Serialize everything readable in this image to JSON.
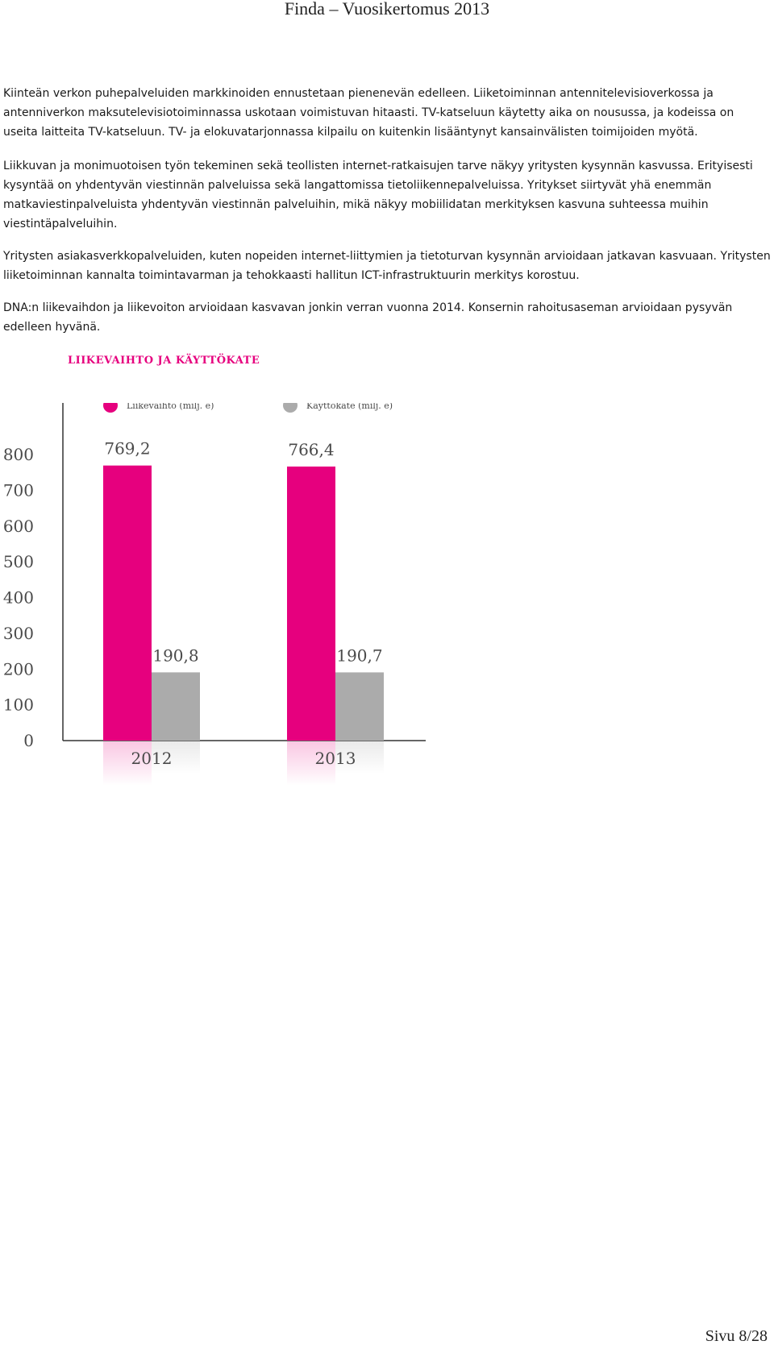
{
  "header": {
    "title": "Finda – Vuosikertomus 2013"
  },
  "paragraphs": [
    "Kiinteän verkon puhepalveluiden markkinoiden ennustetaan pienenevän edelleen. Liiketoiminnan antennitelevisioverkossa ja antenniverkon maksutelevisiotoiminnassa uskotaan voimistuvan hitaasti. TV-katseluun käytetty aika on nousussa, ja kodeissa on useita laitteita TV-katseluun. TV- ja elokuvatarjonnassa kilpailu on kuitenkin lisääntynyt kansainvälisten toimijoiden myötä.",
    "Liikkuvan ja monimuotoisen työn tekeminen sekä teollisten internet-ratkaisujen tarve näkyy yritysten kysynnän kasvussa. Erityisesti kysyntää on yhdentyvän viestinnän palveluissa sekä langattomissa tietoliikennepalveluissa. Yritykset siirtyvät yhä enemmän matkaviestinpalveluista yhdentyvän viestinnän palveluihin, mikä näkyy mobiilidatan merkityksen kasvuna suhteessa muihin viestintäpalveluihin.",
    "Yritysten asiakasverkkopalveluiden, kuten nopeiden internet-liittymien ja tietoturvan kysynnän arvioidaan jatkavan kasvuaan. Yritysten liiketoiminnan kannalta toimintavarman ja tehokkaasti hallitun ICT-infrastruktuurin merkitys korostuu.",
    "DNA:n liikevaihdon ja liikevoiton arvioidaan kasvavan jonkin verran vuonna 2014. Konsernin rahoitusaseman arvioidaan pysyvän edelleen hyvänä."
  ],
  "chart_data": {
    "type": "bar",
    "title": "LIIKEVAIHTO JA KÄYTTÖKATE",
    "categories": [
      "2012",
      "2013"
    ],
    "series": [
      {
        "name": "Liikevaihto (milj. e)",
        "values": [
          769.2,
          766.4
        ],
        "value_labels": [
          "769,2",
          "766,4"
        ],
        "color": "#e6007e"
      },
      {
        "name": "Käyttökate (milj. e)",
        "values": [
          190.8,
          190.7
        ],
        "value_labels": [
          "190,8",
          "190,7"
        ],
        "color": "#ababab"
      }
    ],
    "yticks": [
      "0",
      "100",
      "200",
      "300",
      "400",
      "500",
      "600",
      "700",
      "800"
    ],
    "ylim": [
      0,
      800
    ],
    "legend": "top",
    "grid": false
  },
  "footer": {
    "page": "Sivu 8/28"
  }
}
